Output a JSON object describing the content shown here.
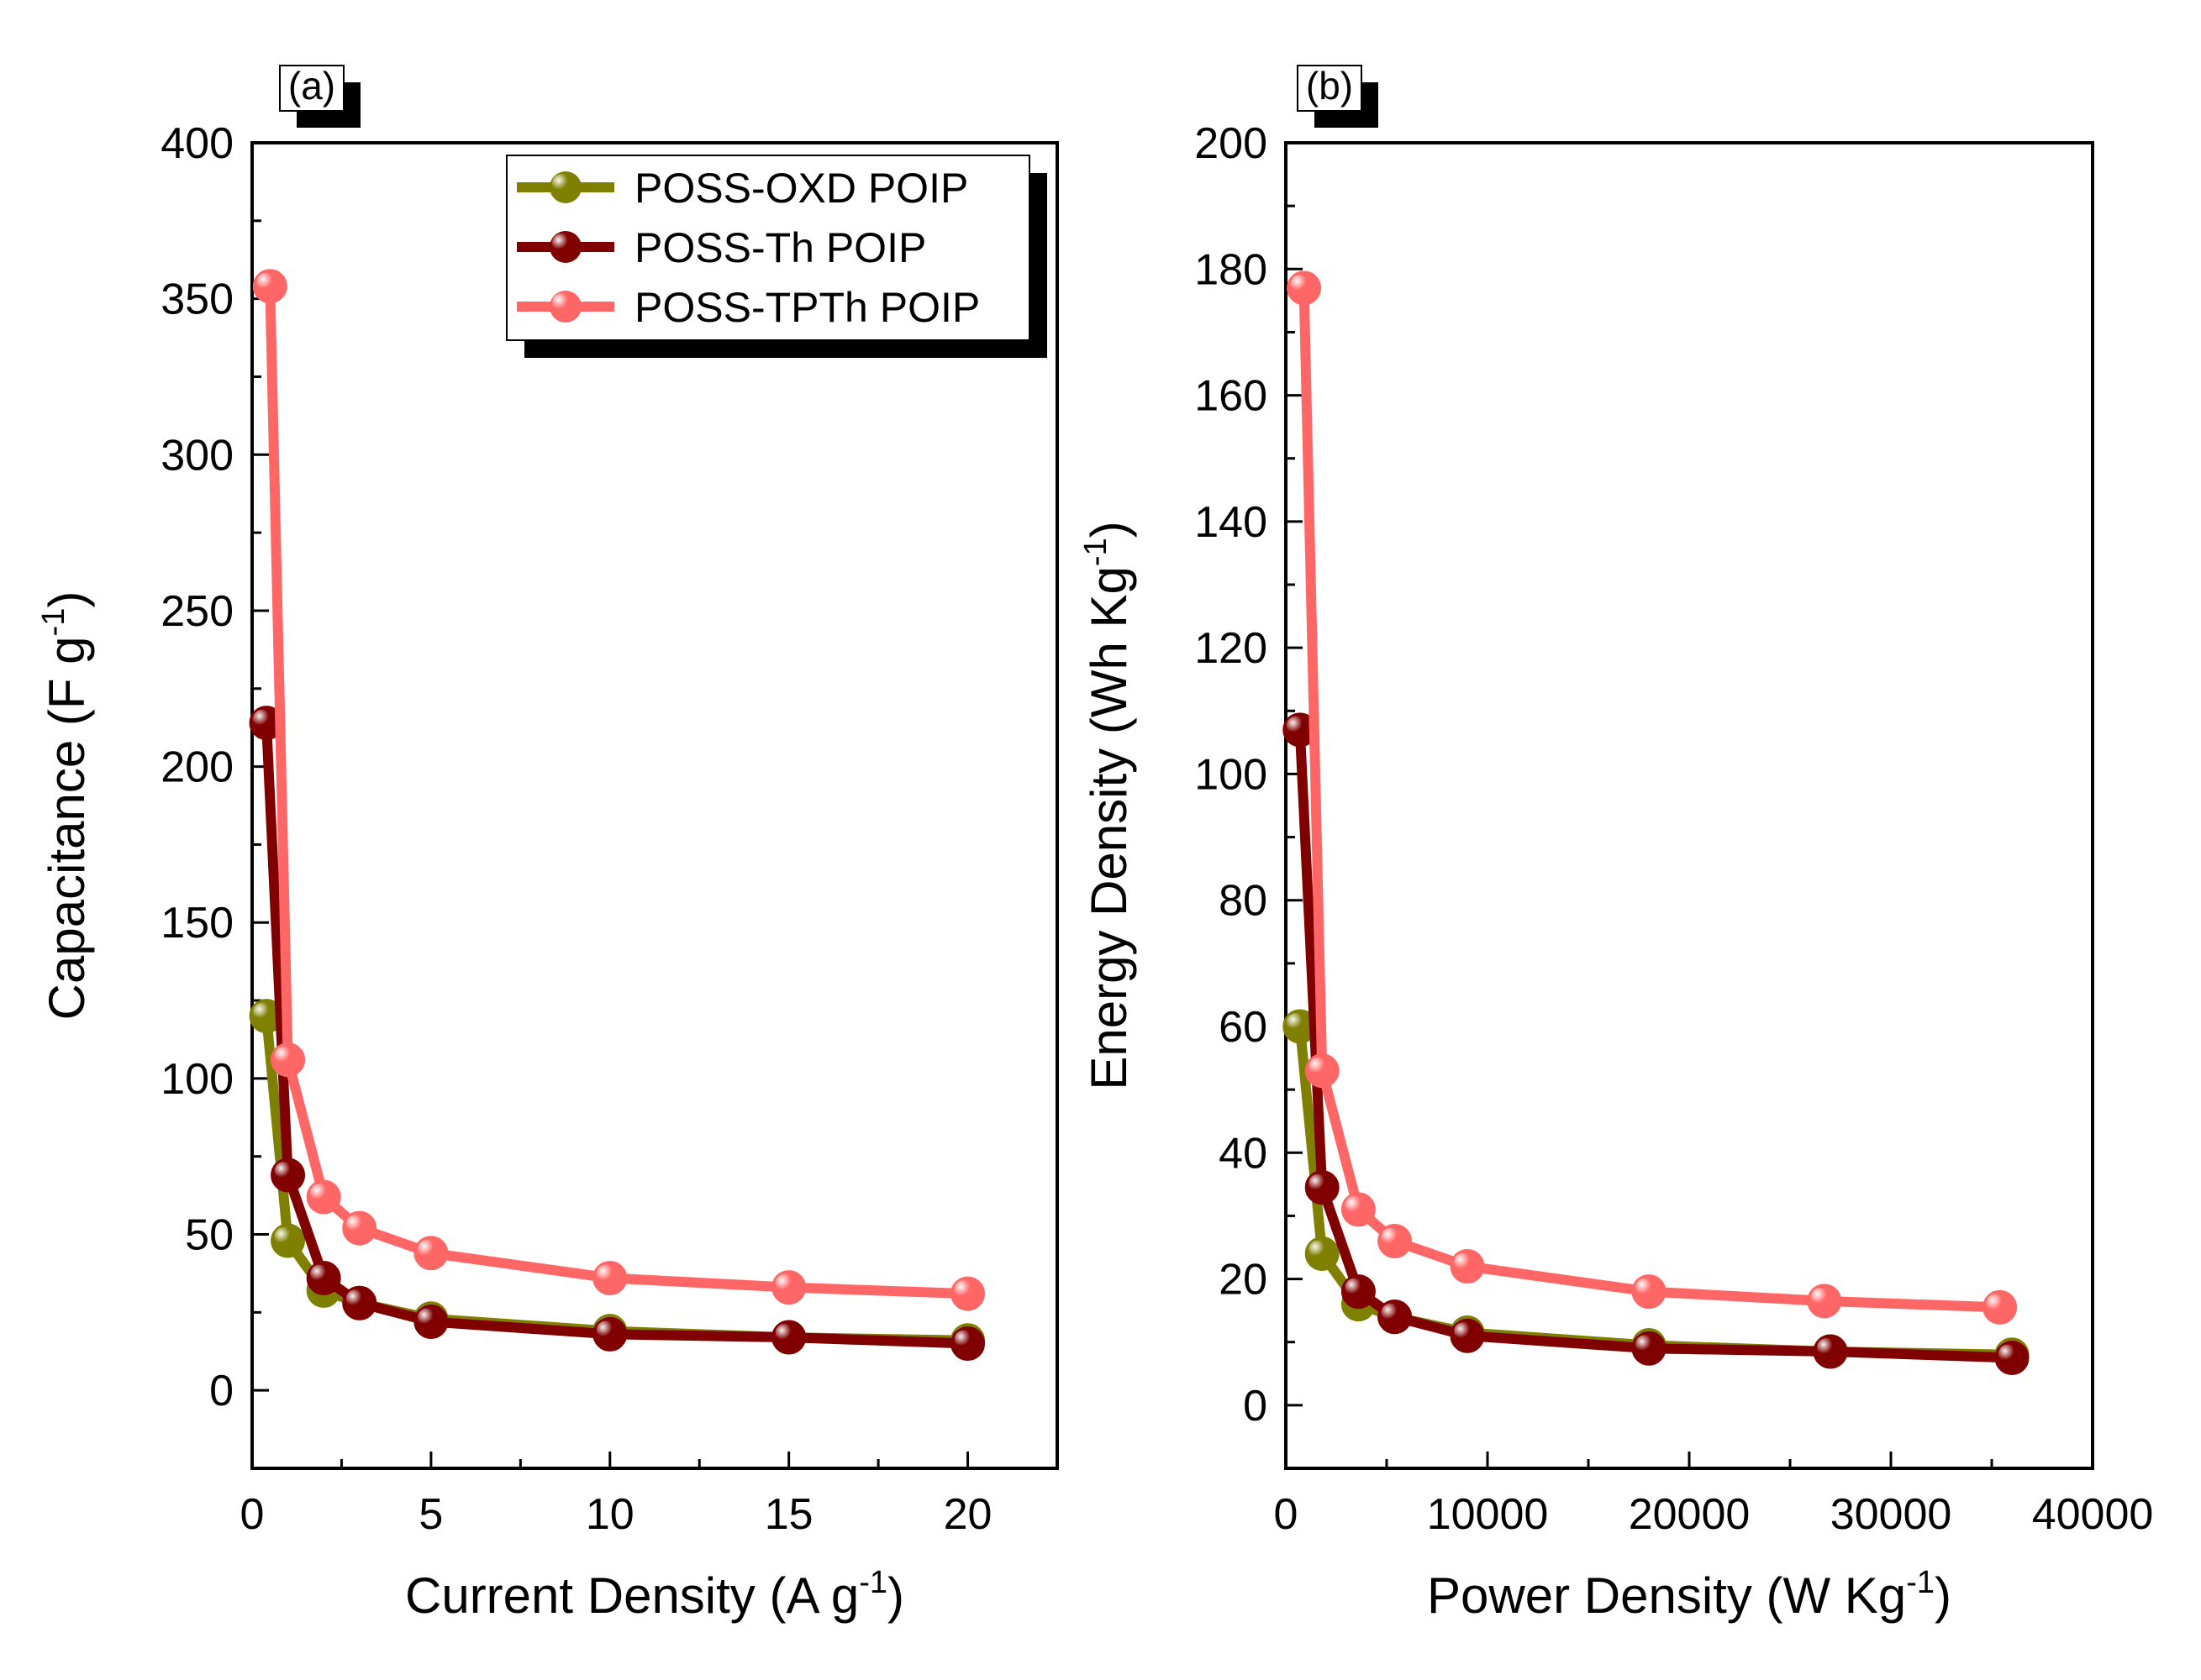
{
  "colors": {
    "oxd": "#7f7f00",
    "th": "#800000",
    "tpth": "#ff6666",
    "axis": "#000000",
    "background": "#ffffff"
  },
  "chart_data": [
    {
      "panel": "(a)",
      "type": "line",
      "xlabel": "Current Density (A g",
      "xlabel_sup": "-1",
      "xlabel_end": ")",
      "ylabel": "Capacitance (F g",
      "ylabel_sup": "-1",
      "ylabel_end": ")",
      "xlim": [
        0,
        22.5
      ],
      "ylim": [
        -25,
        400
      ],
      "xticks": [
        0,
        5,
        10,
        15,
        20
      ],
      "yticks": [
        0,
        50,
        100,
        150,
        200,
        250,
        300,
        350,
        400
      ],
      "legend_position": "top-right",
      "series": [
        {
          "name": "POSS-OXD POIP",
          "color_key": "oxd",
          "x": [
            0.4,
            1,
            2,
            3,
            5,
            10,
            15,
            20
          ],
          "y": [
            120,
            48,
            32,
            28,
            23,
            19,
            17,
            16
          ]
        },
        {
          "name": "POSS-Th POIP",
          "color_key": "th",
          "x": [
            0.4,
            1,
            2,
            3,
            5,
            10,
            15,
            20
          ],
          "y": [
            214,
            69,
            36,
            28,
            22,
            18,
            17,
            15
          ]
        },
        {
          "name": "POSS-TPTh POIP",
          "color_key": "tpth",
          "x": [
            0.5,
            1,
            2,
            3,
            5,
            10,
            15,
            20
          ],
          "y": [
            354,
            106,
            62,
            52,
            44,
            36,
            33,
            31
          ]
        }
      ]
    },
    {
      "panel": "(b)",
      "type": "line",
      "xlabel": "Power Density (W Kg",
      "xlabel_sup": "-1",
      "xlabel_end": ")",
      "ylabel": "Energy Density (Wh Kg",
      "ylabel_sup": "-1",
      "ylabel_end": ")",
      "xlim": [
        0,
        40000
      ],
      "ylim": [
        -10,
        200
      ],
      "xticks": [
        0,
        10000,
        20000,
        30000,
        40000
      ],
      "yticks": [
        0,
        20,
        40,
        60,
        80,
        100,
        120,
        140,
        160,
        180,
        200
      ],
      "legend_position": "none",
      "series": [
        {
          "name": "POSS-OXD POIP",
          "color_key": "oxd",
          "x": [
            700,
            1800,
            3600,
            5400,
            9000,
            18000,
            27000,
            36000
          ],
          "y": [
            60,
            24,
            16,
            14,
            11.5,
            9.5,
            8.5,
            8
          ]
        },
        {
          "name": "POSS-Th POIP",
          "color_key": "th",
          "x": [
            700,
            1800,
            3600,
            5400,
            9000,
            18000,
            27000,
            36000
          ],
          "y": [
            107,
            34.5,
            18,
            14,
            11,
            9,
            8.5,
            7.5
          ]
        },
        {
          "name": "POSS-TPTh POIP",
          "color_key": "tpth",
          "x": [
            900,
            1800,
            3600,
            5400,
            9000,
            18000,
            26700,
            35400
          ],
          "y": [
            177,
            53,
            31,
            26,
            22,
            18,
            16.5,
            15.5
          ]
        }
      ]
    }
  ]
}
